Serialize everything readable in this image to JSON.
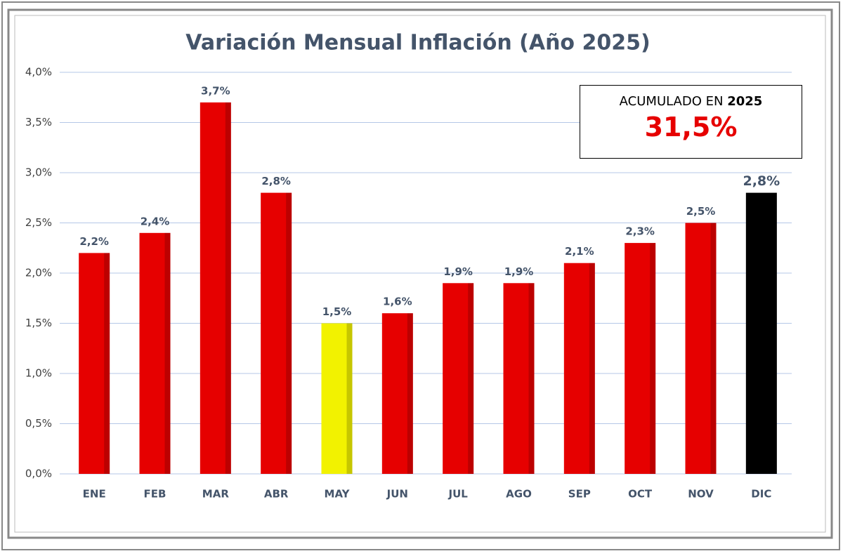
{
  "chart_data": {
    "type": "bar",
    "title": "Variación Mensual Inflación (Año 2025)",
    "categories": [
      "ENE",
      "FEB",
      "MAR",
      "ABR",
      "MAY",
      "JUN",
      "JUL",
      "AGO",
      "SEP",
      "OCT",
      "NOV",
      "DIC"
    ],
    "values": [
      2.2,
      2.4,
      3.7,
      2.8,
      1.5,
      1.6,
      1.9,
      1.9,
      2.1,
      2.3,
      2.5,
      2.8
    ],
    "value_labels": [
      "2,2%",
      "2,4%",
      "3,7%",
      "2,8%",
      "1,5%",
      "1,6%",
      "1,9%",
      "1,9%",
      "2,1%",
      "2,3%",
      "2,5%",
      "2,8%"
    ],
    "colors": [
      "#e60000",
      "#e60000",
      "#e60000",
      "#e60000",
      "#f2f200",
      "#e60000",
      "#e60000",
      "#e60000",
      "#e60000",
      "#e60000",
      "#e60000",
      "#000000"
    ],
    "ylim": [
      0,
      4
    ],
    "yticks": [
      {
        "value": 0,
        "label": "0,0%"
      },
      {
        "value": 0.5,
        "label": "0,5%"
      },
      {
        "value": 1,
        "label": "1,0%"
      },
      {
        "value": 1.5,
        "label": "1,5%"
      },
      {
        "value": 2,
        "label": "2,0%"
      },
      {
        "value": 2.5,
        "label": "2,5%"
      },
      {
        "value": 3,
        "label": "3,0%"
      },
      {
        "value": 3.5,
        "label": "3,5%"
      },
      {
        "value": 4,
        "label": "4,0%"
      }
    ],
    "grid": true,
    "annotation": {
      "label": "ACUMULADO EN",
      "year": "2025",
      "value": "31,5%"
    }
  }
}
